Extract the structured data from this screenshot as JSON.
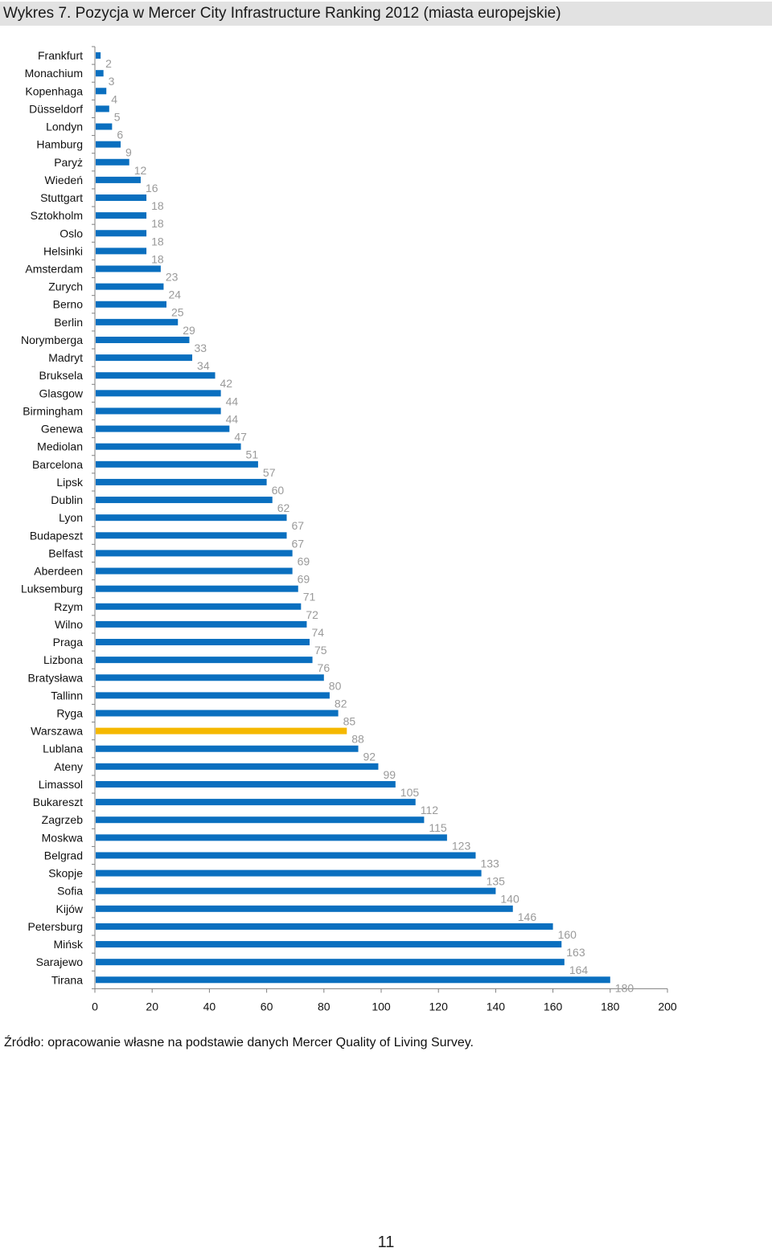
{
  "title": "Wykres 7. Pozycja w Mercer City Infrastructure Ranking 2012 (miasta europejskie)",
  "source": "Źródło: opracowanie własne na podstawie danych Mercer Quality of Living Survey.",
  "page_number": "11",
  "colors": {
    "bar": "#0a6fbf",
    "highlight": "#f5b800",
    "value_label": "#9a9a9a",
    "axis": "#808080"
  },
  "chart_data": {
    "type": "bar",
    "orientation": "horizontal",
    "title": "",
    "xlabel": "",
    "ylabel": "",
    "xlim": [
      0,
      200
    ],
    "x_ticks": [
      0,
      20,
      40,
      60,
      80,
      100,
      120,
      140,
      160,
      180,
      200
    ],
    "highlight_category": "Warszawa",
    "categories": [
      "Frankfurt",
      "Monachium",
      "Kopenhaga",
      "Düsseldorf",
      "Londyn",
      "Hamburg",
      "Paryż",
      "Wiedeń",
      "Stuttgart",
      "Sztokholm",
      "Oslo",
      "Helsinki",
      "Amsterdam",
      "Zurych",
      "Berno",
      "Berlin",
      "Norymberga",
      "Madryt",
      "Bruksela",
      "Glasgow",
      "Birmingham",
      "Genewa",
      "Mediolan",
      "Barcelona",
      "Lipsk",
      "Dublin",
      "Lyon",
      "Budapeszt",
      "Belfast",
      "Aberdeen",
      "Luksemburg",
      "Rzym",
      "Wilno",
      "Praga",
      "Lizbona",
      "Bratysława",
      "Tallinn",
      "Ryga",
      "Warszawa",
      "Lublana",
      "Ateny",
      "Limassol",
      "Bukareszt",
      "Zagrzeb",
      "Moskwa",
      "Belgrad",
      "Skopje",
      "Sofia",
      "Kijów",
      "Petersburg",
      "Mińsk",
      "Sarajewo",
      "Tirana"
    ],
    "values": [
      2,
      3,
      4,
      5,
      6,
      9,
      12,
      16,
      18,
      18,
      18,
      18,
      23,
      24,
      25,
      29,
      33,
      34,
      42,
      44,
      44,
      47,
      51,
      57,
      60,
      62,
      67,
      67,
      69,
      69,
      71,
      72,
      74,
      75,
      76,
      80,
      82,
      85,
      88,
      92,
      99,
      105,
      112,
      115,
      123,
      133,
      135,
      140,
      146,
      160,
      163,
      164,
      180
    ]
  }
}
